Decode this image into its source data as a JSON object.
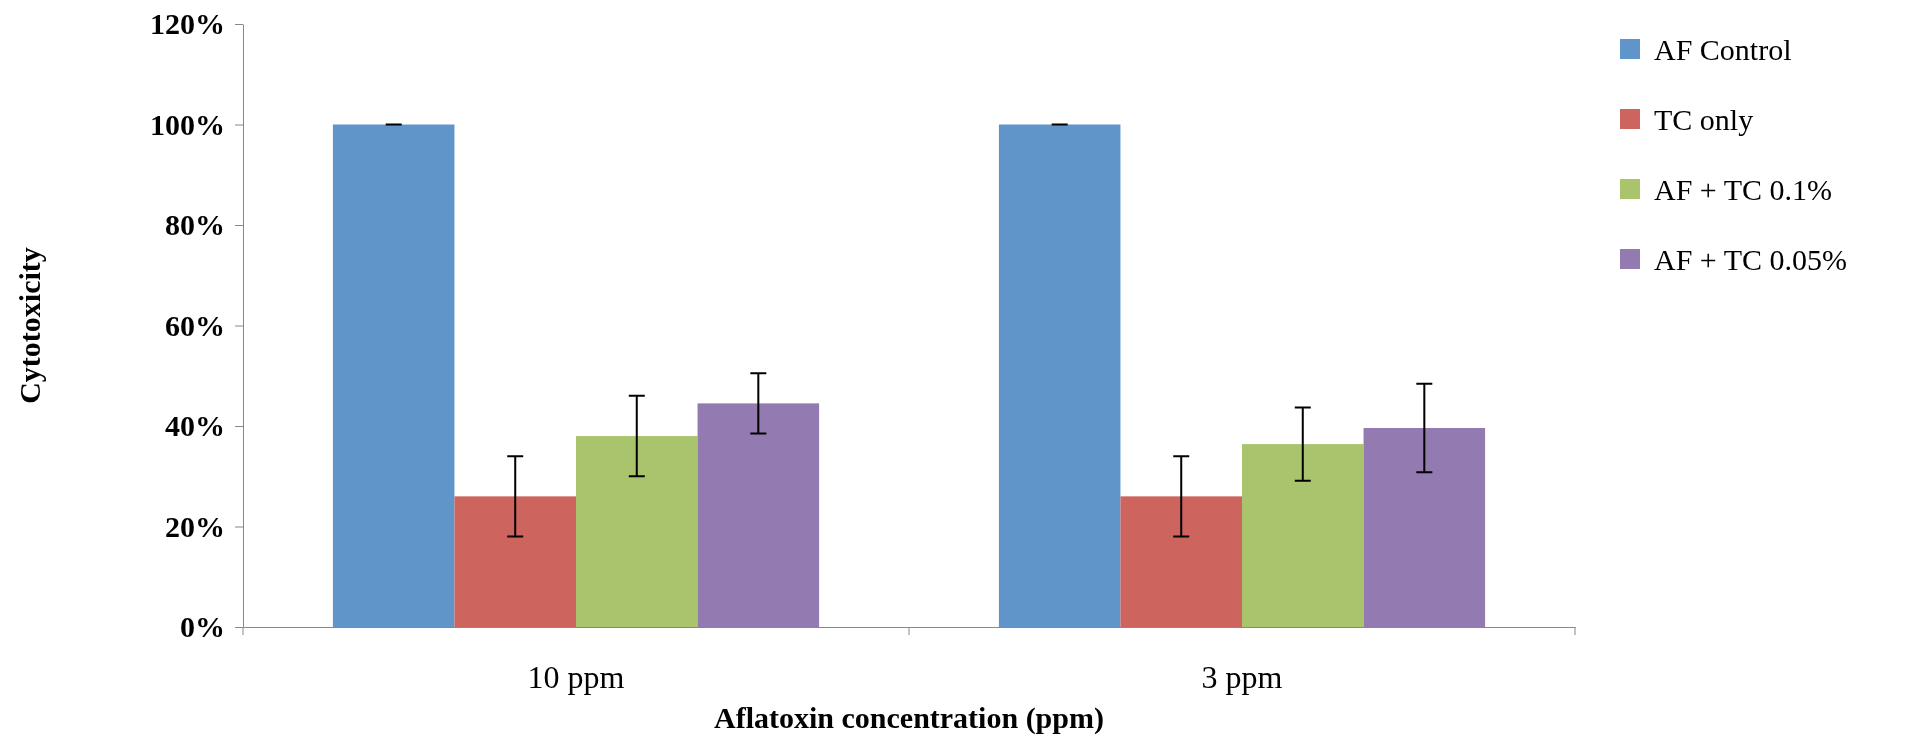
{
  "chart_data": {
    "type": "bar",
    "xlabel": "Aflatoxin concentration (ppm)",
    "ylabel": "Cytotoxicity",
    "categories": [
      "10 ppm",
      "3 ppm"
    ],
    "series": [
      {
        "name": "AF Control",
        "color": "#6095c9",
        "values": [
          100,
          100
        ],
        "errors": [
          0,
          0
        ]
      },
      {
        "name": "TC only",
        "color": "#cd645e",
        "values": [
          26,
          26
        ],
        "errors": [
          8,
          8
        ]
      },
      {
        "name": "AF + TC 0.1%",
        "color": "#a9c46d",
        "values": [
          38,
          36.4
        ],
        "errors": [
          8,
          7.3
        ]
      },
      {
        "name": "AF + TC 0.05%",
        "color": "#937ab1",
        "values": [
          44.5,
          39.6
        ],
        "errors": [
          6,
          8.8
        ]
      }
    ],
    "ylim": [
      0,
      120
    ],
    "yticks": [
      {
        "value": 0,
        "label": "0%"
      },
      {
        "value": 20,
        "label": "20%"
      },
      {
        "value": 40,
        "label": "40%"
      },
      {
        "value": 60,
        "label": "60%"
      },
      {
        "value": 80,
        "label": "80%"
      },
      {
        "value": 100,
        "label": "100%"
      },
      {
        "value": 120,
        "label": "120%"
      }
    ],
    "grid": false,
    "legend": "top right"
  }
}
